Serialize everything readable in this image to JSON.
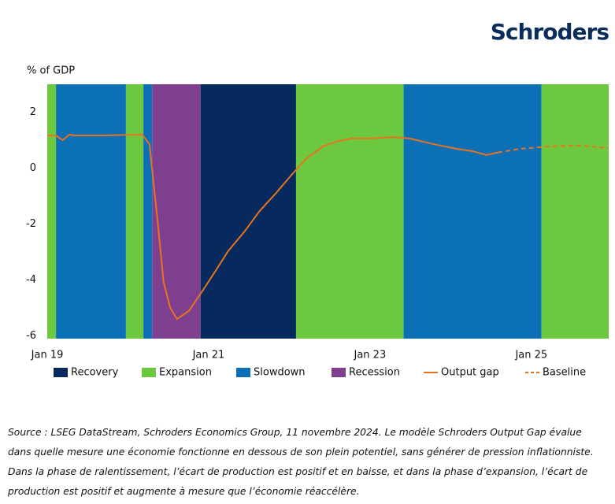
{
  "logo": "Schroders",
  "chart_data": {
    "type": "line",
    "ylabel": "% of GDP",
    "xlim": [
      0,
      83.5
    ],
    "ylim": [
      -6.1,
      3
    ],
    "xticks": [
      {
        "value": 0,
        "label": "Jan 19"
      },
      {
        "value": 24,
        "label": "Jan 21"
      },
      {
        "value": 48,
        "label": "Jan 23"
      },
      {
        "value": 72,
        "label": "Jan 25"
      }
    ],
    "yticks": [
      -6,
      -4,
      -2,
      0,
      2
    ],
    "regimes": [
      {
        "name": "Recovery",
        "color": "#062a5e"
      },
      {
        "name": "Expansion",
        "color": "#6cc93f"
      },
      {
        "name": "Slowdown",
        "color": "#0b70b5"
      },
      {
        "name": "Recession",
        "color": "#7e3f8f"
      }
    ],
    "periods": [
      {
        "regime": "Expansion",
        "start": 0,
        "end": 1.3
      },
      {
        "regime": "Slowdown",
        "start": 1.3,
        "end": 11.7
      },
      {
        "regime": "Expansion",
        "start": 11.7,
        "end": 14.3
      },
      {
        "regime": "Slowdown",
        "start": 14.3,
        "end": 15.6
      },
      {
        "regime": "Recession",
        "start": 15.6,
        "end": 22.8
      },
      {
        "regime": "Recovery",
        "start": 22.8,
        "end": 37
      },
      {
        "regime": "Expansion",
        "start": 37,
        "end": 53
      },
      {
        "regime": "Slowdown",
        "start": 53,
        "end": 73.5
      },
      {
        "regime": "Expansion",
        "start": 73.5,
        "end": 83.5
      }
    ],
    "series": [
      {
        "name": "Output gap",
        "color": "#e8731e",
        "dashed": false,
        "x": [
          0,
          1.4,
          2.3,
          3.3,
          4.1,
          8.2,
          14.1,
          15.2,
          16.4,
          17.3,
          18.3,
          19.3,
          21.1,
          23.2,
          25.1,
          26.9,
          29.3,
          31.6,
          34,
          36.3,
          38.6,
          41,
          43.3,
          45.3,
          48,
          51.5,
          53.9,
          57.4,
          60.9,
          63.2,
          65.3,
          67
        ],
        "values": [
          1.17,
          1.15,
          1.0,
          1.2,
          1.17,
          1.17,
          1.2,
          0.86,
          -1.86,
          -4.08,
          -5.0,
          -5.4,
          -5.1,
          -4.35,
          -3.65,
          -2.97,
          -2.28,
          -1.53,
          -0.9,
          -0.25,
          0.36,
          0.78,
          0.97,
          1.06,
          1.06,
          1.11,
          1.06,
          0.86,
          0.69,
          0.61,
          0.47,
          0.56
        ]
      },
      {
        "name": "Baseline",
        "color": "#e8731e",
        "dashed": true,
        "x": [
          67,
          70.3,
          74.9,
          79,
          83.5
        ],
        "values": [
          0.56,
          0.69,
          0.78,
          0.81,
          0.72
        ]
      }
    ],
    "source": "Source : LSEG DataStream, Schroders Economics Group, 11 novembre 2024. Le modèle Schroders Output Gap évalue dans quelle mesure une économie fonctionne en dessous de son plein potentiel, sans générer de pression inflationniste. Dans la phase de ralentissement, l’écart de production est positif et en baisse, et dans la phase d’expansion, l’écart de production est positif et augmente à mesure que l’économie réaccélère."
  }
}
